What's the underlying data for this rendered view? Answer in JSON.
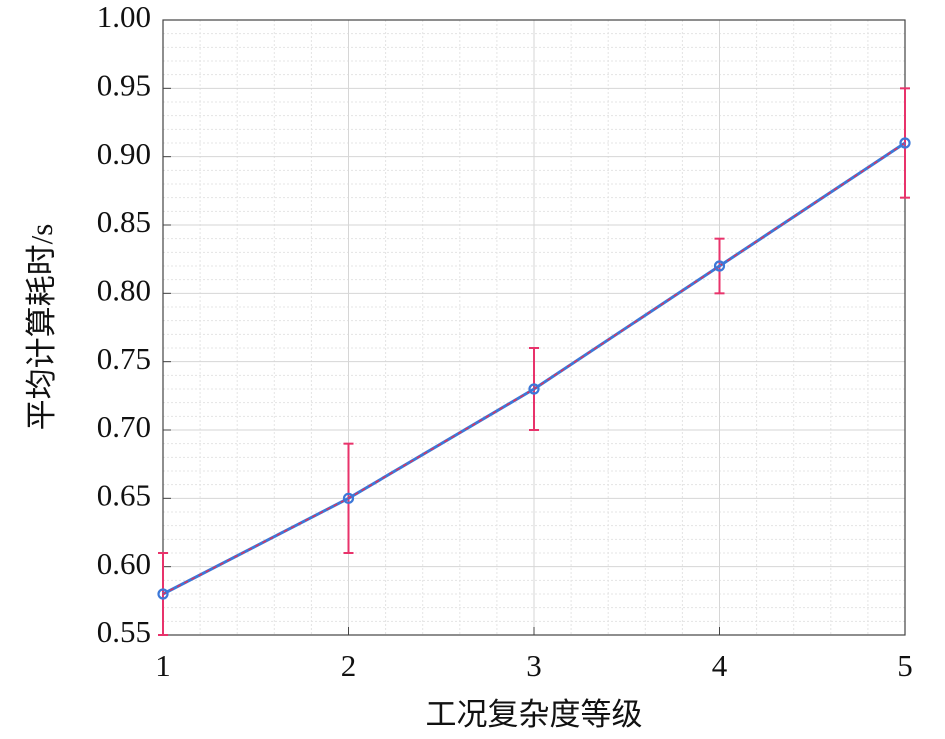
{
  "chart_data": {
    "type": "line",
    "xlabel": "工况复杂度等级",
    "ylabel": "平均计算耗时/s",
    "x": [
      1,
      2,
      3,
      4,
      5
    ],
    "series": [
      {
        "color": "#3c78d8",
        "dash_color": "#d9335e",
        "error_color": "#e8336b",
        "values": [
          0.58,
          0.65,
          0.73,
          0.82,
          0.91
        ],
        "errors": [
          0.03,
          0.04,
          0.03,
          0.02,
          0.04
        ]
      }
    ],
    "xlim": [
      1,
      5
    ],
    "xticks": [
      1,
      2,
      3,
      4,
      5
    ],
    "ylim": [
      0.55,
      1.0
    ],
    "yticks": [
      {
        "value": 0.55,
        "label": "0.55"
      },
      {
        "value": 0.6,
        "label": "0.60"
      },
      {
        "value": 0.65,
        "label": "0.65"
      },
      {
        "value": 0.7,
        "label": "0.70"
      },
      {
        "value": 0.75,
        "label": "0.75"
      },
      {
        "value": 0.8,
        "label": "0.80"
      },
      {
        "value": 0.85,
        "label": "0.85"
      },
      {
        "value": 0.9,
        "label": "0.90"
      },
      {
        "value": 0.95,
        "label": "0.95"
      },
      {
        "value": 1.0,
        "label": "1.00"
      }
    ],
    "grid": true,
    "minor_grid": true
  }
}
